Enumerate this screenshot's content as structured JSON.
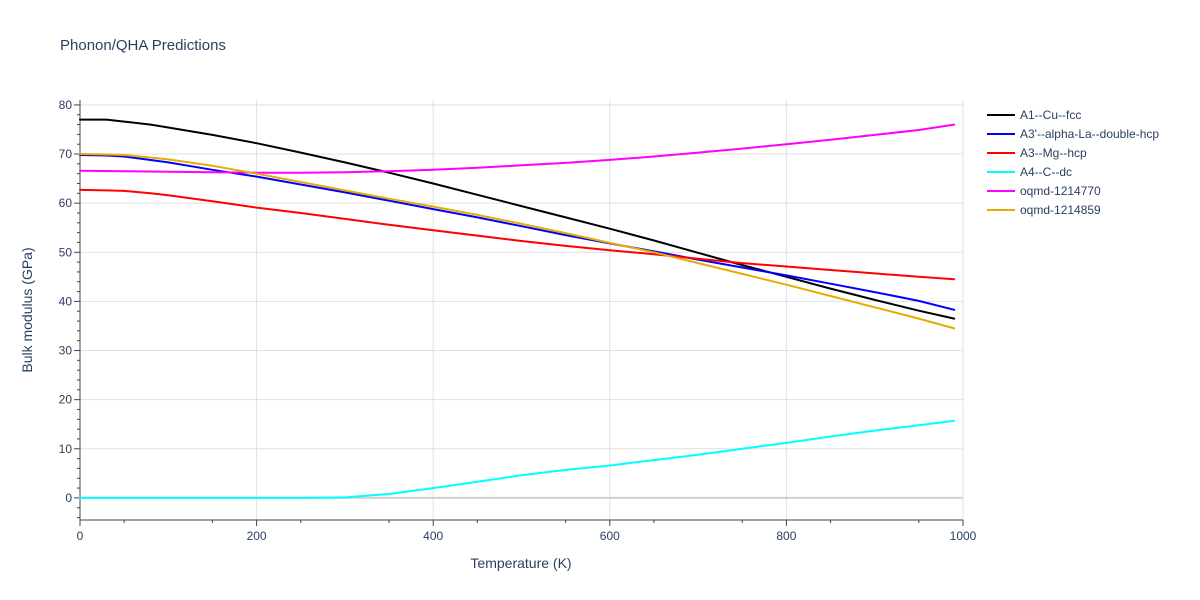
{
  "chart_data": {
    "type": "line",
    "title": "Phonon/QHA Predictions",
    "xlabel": "Temperature (K)",
    "ylabel": "Bulk modulus (GPa)",
    "xlim": [
      0,
      1000
    ],
    "ylim": [
      -4.5,
      81
    ],
    "x_ticks": [
      0,
      200,
      400,
      600,
      800,
      1000
    ],
    "y_ticks": [
      0,
      10,
      20,
      30,
      40,
      50,
      60,
      70,
      80
    ],
    "grid": true,
    "legend_position": "top-right, outside plot",
    "series": [
      {
        "name": "A1--Cu--fcc",
        "color": "#000000",
        "points": [
          [
            0,
            77
          ],
          [
            30,
            77
          ],
          [
            50,
            76.6
          ],
          [
            80,
            76
          ],
          [
            100,
            75.4
          ],
          [
            150,
            73.9
          ],
          [
            200,
            72.2
          ],
          [
            250,
            70.3
          ],
          [
            300,
            68.3
          ],
          [
            350,
            66.2
          ],
          [
            400,
            64
          ],
          [
            450,
            61.7
          ],
          [
            500,
            59.4
          ],
          [
            550,
            57.1
          ],
          [
            600,
            54.8
          ],
          [
            650,
            52.4
          ],
          [
            700,
            49.9
          ],
          [
            750,
            47.4
          ],
          [
            800,
            45
          ],
          [
            850,
            42.6
          ],
          [
            900,
            40.3
          ],
          [
            950,
            38.1
          ],
          [
            990,
            36.5
          ]
        ]
      },
      {
        "name": "A3'--alpha-La--double-hcp",
        "color": "#0000ff",
        "points": [
          [
            0,
            69.8
          ],
          [
            30,
            69.7
          ],
          [
            50,
            69.5
          ],
          [
            100,
            68.3
          ],
          [
            150,
            66.8
          ],
          [
            200,
            65.4
          ],
          [
            250,
            63.8
          ],
          [
            300,
            62.2
          ],
          [
            350,
            60.5
          ],
          [
            400,
            58.8
          ],
          [
            450,
            57.1
          ],
          [
            500,
            55.3
          ],
          [
            550,
            53.5
          ],
          [
            600,
            51.8
          ],
          [
            650,
            50.2
          ],
          [
            700,
            48.5
          ],
          [
            750,
            46.9
          ],
          [
            800,
            45.3
          ],
          [
            850,
            43.6
          ],
          [
            900,
            41.9
          ],
          [
            950,
            40.1
          ],
          [
            990,
            38.3
          ]
        ]
      },
      {
        "name": "A3--Mg--hcp",
        "color": "#ff0000",
        "points": [
          [
            0,
            62.7
          ],
          [
            30,
            62.6
          ],
          [
            50,
            62.5
          ],
          [
            80,
            62
          ],
          [
            100,
            61.6
          ],
          [
            150,
            60.4
          ],
          [
            200,
            59.1
          ],
          [
            250,
            58
          ],
          [
            300,
            56.8
          ],
          [
            350,
            55.6
          ],
          [
            400,
            54.5
          ],
          [
            450,
            53.4
          ],
          [
            500,
            52.3
          ],
          [
            550,
            51.3
          ],
          [
            600,
            50.4
          ],
          [
            650,
            49.6
          ],
          [
            700,
            48.7
          ],
          [
            750,
            47.8
          ],
          [
            800,
            47.1
          ],
          [
            850,
            46.4
          ],
          [
            900,
            45.7
          ],
          [
            950,
            45
          ],
          [
            990,
            44.5
          ]
        ]
      },
      {
        "name": "A4--C--dc",
        "color": "#00ffff",
        "points": [
          [
            0,
            0
          ],
          [
            100,
            0
          ],
          [
            200,
            0
          ],
          [
            250,
            0
          ],
          [
            300,
            0.1
          ],
          [
            350,
            0.8
          ],
          [
            400,
            2
          ],
          [
            450,
            3.3
          ],
          [
            500,
            4.6
          ],
          [
            550,
            5.7
          ],
          [
            600,
            6.6
          ],
          [
            650,
            7.7
          ],
          [
            700,
            8.8
          ],
          [
            750,
            10
          ],
          [
            800,
            11.2
          ],
          [
            850,
            12.5
          ],
          [
            900,
            13.7
          ],
          [
            950,
            14.8
          ],
          [
            990,
            15.7
          ]
        ]
      },
      {
        "name": "oqmd-1214770",
        "color": "#ff00ff",
        "points": [
          [
            0,
            66.6
          ],
          [
            50,
            66.5
          ],
          [
            100,
            66.4
          ],
          [
            150,
            66.3
          ],
          [
            200,
            66.2
          ],
          [
            250,
            66.2
          ],
          [
            300,
            66.3
          ],
          [
            350,
            66.5
          ],
          [
            400,
            66.8
          ],
          [
            450,
            67.2
          ],
          [
            500,
            67.7
          ],
          [
            550,
            68.2
          ],
          [
            600,
            68.8
          ],
          [
            650,
            69.5
          ],
          [
            700,
            70.3
          ],
          [
            750,
            71.1
          ],
          [
            800,
            72
          ],
          [
            850,
            72.9
          ],
          [
            900,
            73.9
          ],
          [
            950,
            74.9
          ],
          [
            990,
            76
          ]
        ]
      },
      {
        "name": "oqmd-1214859",
        "color": "#e6ac00",
        "points": [
          [
            0,
            70
          ],
          [
            30,
            69.9
          ],
          [
            50,
            69.8
          ],
          [
            100,
            68.9
          ],
          [
            150,
            67.6
          ],
          [
            200,
            66
          ],
          [
            250,
            64.3
          ],
          [
            300,
            62.6
          ],
          [
            350,
            60.9
          ],
          [
            400,
            59.3
          ],
          [
            450,
            57.6
          ],
          [
            500,
            55.8
          ],
          [
            550,
            53.9
          ],
          [
            600,
            51.9
          ],
          [
            650,
            50
          ],
          [
            700,
            47.8
          ],
          [
            750,
            45.6
          ],
          [
            800,
            43.4
          ],
          [
            850,
            41.1
          ],
          [
            900,
            38.8
          ],
          [
            950,
            36.5
          ],
          [
            990,
            34.5
          ]
        ]
      }
    ]
  }
}
